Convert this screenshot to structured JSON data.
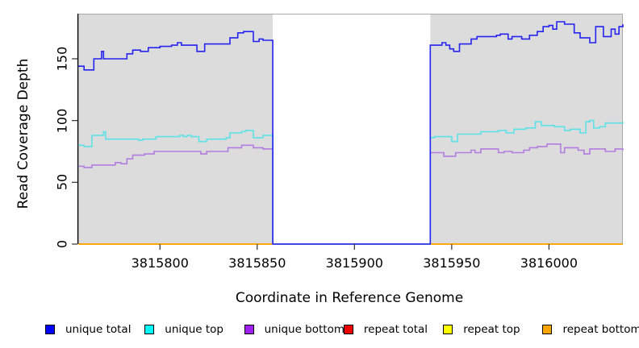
{
  "chart_data": {
    "type": "line",
    "title": "",
    "xlabel": "Coordinate in Reference Genome",
    "ylabel": "Read Coverage Depth",
    "xlim": [
      3815758,
      3816038
    ],
    "ylim": [
      0,
      186.5
    ],
    "x_ticks": [
      3815800,
      3815850,
      3815900,
      3815950,
      3816000
    ],
    "y_ticks": [
      0,
      50,
      100,
      150
    ],
    "grid": false,
    "panel_bg": "#DCDCDC",
    "panel_border_color": "#A9A9A9",
    "axis_color": "#000000",
    "zero_coverage_gap": {
      "start": 3815858,
      "end": 3815939,
      "fill": "#FFFFFF"
    },
    "legend_position": "bottom",
    "legend": [
      {
        "label": "unique total",
        "color": "#0000FF"
      },
      {
        "label": "unique top",
        "color": "#00FFFF"
      },
      {
        "label": "unique bottom",
        "color": "#A020F0"
      },
      {
        "label": "repeat total",
        "color": "#EE0000"
      },
      {
        "label": "repeat top",
        "color": "#FFFF00"
      },
      {
        "label": "repeat bottom",
        "color": "#FFA500"
      }
    ],
    "series": [
      {
        "name": "repeat total",
        "color": "#EE0000",
        "points": [
          [
            3815758,
            0
          ],
          [
            3816038,
            0
          ]
        ]
      },
      {
        "name": "repeat top",
        "color": "#FFFF00",
        "points": [
          [
            3815758,
            0
          ],
          [
            3816038,
            0
          ]
        ]
      },
      {
        "name": "repeat bottom",
        "color": "#FFA500",
        "points": [
          [
            3815758,
            0
          ],
          [
            3816038,
            0
          ]
        ]
      },
      {
        "name": "unique bottom",
        "color": "#B37CE0",
        "points": [
          [
            3815758,
            63
          ],
          [
            3815761,
            62
          ],
          [
            3815765,
            64
          ],
          [
            3815776,
            64
          ],
          [
            3815777,
            66
          ],
          [
            3815780,
            65
          ],
          [
            3815783,
            69
          ],
          [
            3815786,
            72
          ],
          [
            3815792,
            73
          ],
          [
            3815797,
            75
          ],
          [
            3815819,
            75
          ],
          [
            3815821,
            73
          ],
          [
            3815824,
            75
          ],
          [
            3815835,
            78
          ],
          [
            3815842,
            80
          ],
          [
            3815846,
            80
          ],
          [
            3815848,
            78
          ],
          [
            3815853,
            77
          ],
          [
            3815858,
            77
          ],
          [
            3815858,
            0
          ],
          [
            3815939,
            0
          ],
          [
            3815939,
            74
          ],
          [
            3815945,
            74
          ],
          [
            3815946,
            71
          ],
          [
            3815951,
            71
          ],
          [
            3815952,
            74
          ],
          [
            3815960,
            76
          ],
          [
            3815962,
            74
          ],
          [
            3815965,
            77
          ],
          [
            3815972,
            77
          ],
          [
            3815974,
            74
          ],
          [
            3815977,
            75
          ],
          [
            3815981,
            74
          ],
          [
            3815987,
            76
          ],
          [
            3815990,
            78
          ],
          [
            3815994,
            79
          ],
          [
            3815999,
            81
          ],
          [
            3816004,
            81
          ],
          [
            3816006,
            74
          ],
          [
            3816008,
            78
          ],
          [
            3816013,
            78
          ],
          [
            3816015,
            76
          ],
          [
            3816018,
            73
          ],
          [
            3816021,
            77
          ],
          [
            3816026,
            77
          ],
          [
            3816029,
            75
          ],
          [
            3816033,
            75
          ],
          [
            3816034,
            77
          ],
          [
            3816038,
            76
          ]
        ]
      },
      {
        "name": "unique top",
        "color": "#5CE1E8",
        "points": [
          [
            3815758,
            80
          ],
          [
            3815761,
            79
          ],
          [
            3815765,
            79
          ],
          [
            3815765,
            88
          ],
          [
            3815770,
            88
          ],
          [
            3815771,
            91
          ],
          [
            3815772,
            85
          ],
          [
            3815778,
            85
          ],
          [
            3815789,
            84
          ],
          [
            3815791,
            85
          ],
          [
            3815798,
            87
          ],
          [
            3815808,
            87
          ],
          [
            3815810,
            88
          ],
          [
            3815812,
            87
          ],
          [
            3815814,
            88
          ],
          [
            3815816,
            87
          ],
          [
            3815820,
            83
          ],
          [
            3815824,
            85
          ],
          [
            3815834,
            86
          ],
          [
            3815836,
            90
          ],
          [
            3815842,
            91
          ],
          [
            3815844,
            92
          ],
          [
            3815847,
            92
          ],
          [
            3815848,
            86
          ],
          [
            3815853,
            88
          ],
          [
            3815858,
            88
          ],
          [
            3815858,
            0
          ],
          [
            3815939,
            0
          ],
          [
            3815939,
            86
          ],
          [
            3815941,
            87
          ],
          [
            3815946,
            87
          ],
          [
            3815950,
            83
          ],
          [
            3815953,
            89
          ],
          [
            3815962,
            89
          ],
          [
            3815965,
            91
          ],
          [
            3815972,
            91
          ],
          [
            3815974,
            92
          ],
          [
            3815978,
            90
          ],
          [
            3815982,
            93
          ],
          [
            3815988,
            94
          ],
          [
            3815993,
            99
          ],
          [
            3815996,
            96
          ],
          [
            3816003,
            95
          ],
          [
            3816008,
            92
          ],
          [
            3816011,
            93
          ],
          [
            3816016,
            90
          ],
          [
            3816019,
            99
          ],
          [
            3816021,
            100
          ],
          [
            3816023,
            94
          ],
          [
            3816026,
            95
          ],
          [
            3816029,
            98
          ],
          [
            3816033,
            98
          ],
          [
            3816038,
            99
          ]
        ]
      },
      {
        "name": "unique total",
        "color": "#2424F0",
        "points": [
          [
            3815758,
            144
          ],
          [
            3815761,
            141
          ],
          [
            3815765,
            141
          ],
          [
            3815766,
            150
          ],
          [
            3815770,
            156
          ],
          [
            3815771,
            150
          ],
          [
            3815780,
            150
          ],
          [
            3815783,
            154
          ],
          [
            3815786,
            157
          ],
          [
            3815790,
            156
          ],
          [
            3815794,
            159
          ],
          [
            3815800,
            160
          ],
          [
            3815806,
            161
          ],
          [
            3815809,
            163
          ],
          [
            3815811,
            161
          ],
          [
            3815817,
            161
          ],
          [
            3815819,
            156
          ],
          [
            3815823,
            162
          ],
          [
            3815833,
            162
          ],
          [
            3815836,
            167
          ],
          [
            3815840,
            171
          ],
          [
            3815843,
            172
          ],
          [
            3815847,
            172
          ],
          [
            3815848,
            164
          ],
          [
            3815851,
            166
          ],
          [
            3815853,
            165
          ],
          [
            3815858,
            165
          ],
          [
            3815858,
            0
          ],
          [
            3815939,
            0
          ],
          [
            3815939,
            161
          ],
          [
            3815944,
            161
          ],
          [
            3815945,
            163
          ],
          [
            3815947,
            161
          ],
          [
            3815949,
            158
          ],
          [
            3815951,
            156
          ],
          [
            3815954,
            162
          ],
          [
            3815960,
            166
          ],
          [
            3815963,
            168
          ],
          [
            3815973,
            169
          ],
          [
            3815975,
            170
          ],
          [
            3815979,
            166
          ],
          [
            3815981,
            168
          ],
          [
            3815986,
            166
          ],
          [
            3815990,
            169
          ],
          [
            3815994,
            172
          ],
          [
            3815997,
            176
          ],
          [
            3816000,
            177
          ],
          [
            3816002,
            174
          ],
          [
            3816004,
            180
          ],
          [
            3816008,
            178
          ],
          [
            3816013,
            171
          ],
          [
            3816016,
            167
          ],
          [
            3816021,
            163
          ],
          [
            3816024,
            176
          ],
          [
            3816028,
            168
          ],
          [
            3816032,
            174
          ],
          [
            3816034,
            170
          ],
          [
            3816036,
            176
          ],
          [
            3816038,
            178
          ]
        ]
      }
    ]
  }
}
